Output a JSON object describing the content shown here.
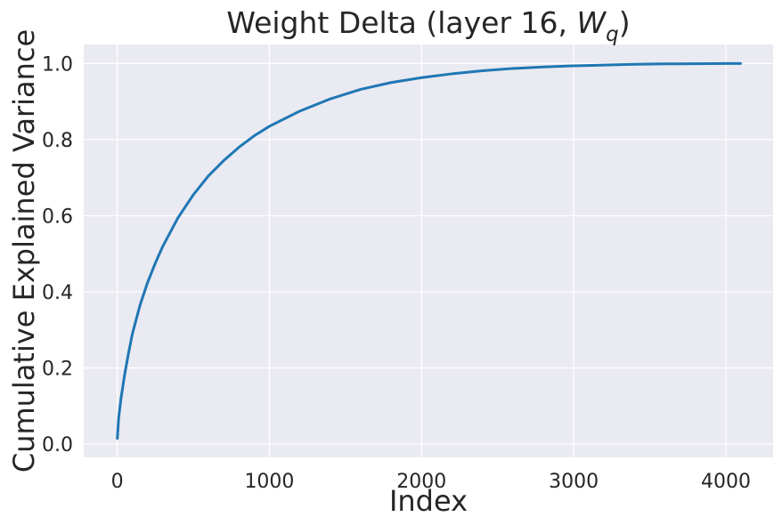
{
  "chart_data": {
    "type": "line",
    "title": "Weight Delta (layer 16, W_q)",
    "title_parts": {
      "prefix": "Weight Delta (layer 16, ",
      "math_base": "W",
      "math_subscript": "q",
      "suffix": ")"
    },
    "xlabel": "Index",
    "ylabel": "Cumulative Explained Variance",
    "xlim": [
      -220,
      4310
    ],
    "ylim": [
      -0.035,
      1.05
    ],
    "x_ticks": [
      0,
      1000,
      2000,
      3000,
      4000
    ],
    "x_tick_labels": [
      "0",
      "1000",
      "2000",
      "3000",
      "4000"
    ],
    "y_ticks": [
      0.0,
      0.2,
      0.4,
      0.6,
      0.8,
      1.0
    ],
    "y_tick_labels": [
      "0.0",
      "0.2",
      "0.4",
      "0.6",
      "0.8",
      "1.0"
    ],
    "grid": true,
    "style": {
      "background": "#eaeaf2",
      "grid_color": "#ffffff",
      "line_color": "#1f77b4"
    },
    "series": [
      {
        "x": [
          1,
          10,
          25,
          50,
          75,
          100,
          150,
          200,
          250,
          300,
          400,
          500,
          600,
          700,
          800,
          900,
          1000,
          1200,
          1400,
          1600,
          1800,
          2000,
          2200,
          2400,
          2600,
          2800,
          3000,
          3200,
          3400,
          3600,
          3800,
          4000,
          4096
        ],
        "values": [
          0.015,
          0.07,
          0.12,
          0.185,
          0.24,
          0.29,
          0.365,
          0.425,
          0.475,
          0.52,
          0.595,
          0.655,
          0.705,
          0.745,
          0.78,
          0.81,
          0.835,
          0.875,
          0.907,
          0.932,
          0.95,
          0.963,
          0.973,
          0.981,
          0.987,
          0.991,
          0.994,
          0.996,
          0.998,
          0.999,
          0.9995,
          1.0,
          1.0
        ]
      }
    ]
  }
}
